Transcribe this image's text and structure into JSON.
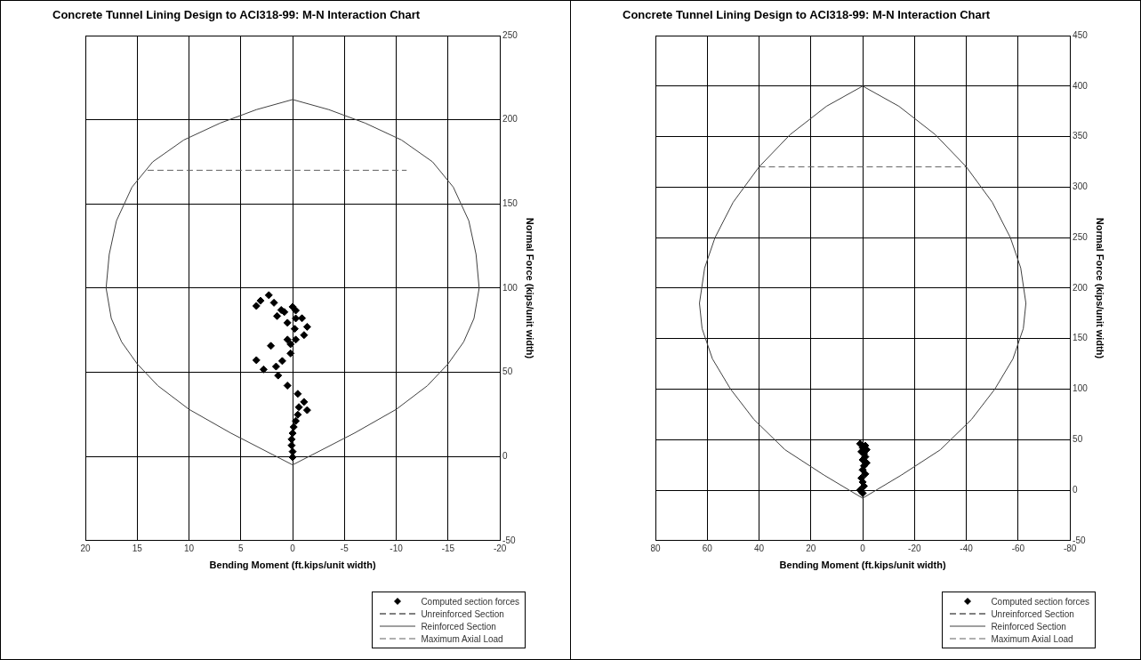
{
  "chart_data": [
    {
      "type": "scatter",
      "title": "Concrete Tunnel Lining Design to ACI318-99: M-N Interaction Chart",
      "xlabel": "Bending Moment (ft.kips/unit width)",
      "ylabel": "Normal Force (kips/unit width)",
      "xlim": [
        20,
        -20
      ],
      "xticks": [
        20,
        15,
        10,
        5,
        0,
        -5,
        -10,
        -15,
        -20
      ],
      "ylim": [
        -50,
        250
      ],
      "yticks": [
        -50,
        0,
        50,
        100,
        150,
        200,
        250
      ],
      "grid": true,
      "legend": "bottom right",
      "series": [
        {
          "name": "Computed section forces",
          "marker": "diamond",
          "color": "#000000",
          "x": [
            2.3,
            3.1,
            3.5,
            1.8,
            1.1,
            0.8,
            1.5,
            0,
            -0.3,
            -0.3,
            -0.9,
            0.5,
            -1.4,
            -0.2,
            -1.1,
            -0.3,
            0.5,
            0.2,
            2.1,
            0.2,
            3.5,
            1,
            1.6,
            2.8,
            1.4,
            0.5,
            -0.5,
            -1.1,
            -0.6,
            -1.4,
            -0.5,
            -0.3,
            -0.1,
            0,
            0.1,
            0.1,
            0,
            0
          ],
          "values": [
            95.8,
            92.5,
            89.4,
            91.3,
            87,
            85.8,
            83.4,
            88.9,
            86.7,
            82,
            82.1,
            79.4,
            77,
            75.8,
            72.1,
            69.4,
            69.4,
            66.7,
            65.7,
            61.2,
            57.2,
            56.7,
            53.4,
            51.7,
            48.1,
            42.1,
            37.2,
            32.4,
            29.3,
            27.5,
            24.8,
            21.1,
            17.5,
            13.8,
            10.2,
            6.6,
            2.9,
            -0.4
          ]
        },
        {
          "name": "Unreinforced Section",
          "type": "line",
          "line_style": "dashed",
          "color": "#000000"
        },
        {
          "name": "Reinforced Section",
          "type": "line",
          "line_style": "solid",
          "color": "#404040",
          "x": [
            18,
            17.7,
            17,
            15.5,
            13.5,
            10.5,
            7,
            3.5,
            0,
            -3.5,
            -7,
            -10.5,
            -13.5,
            -15.5,
            -17,
            -17.7,
            -18,
            null,
            -18,
            -17.5,
            -16.5,
            -15,
            -13,
            -10,
            -6,
            0,
            6,
            10,
            13,
            15,
            16.5,
            17.5,
            18
          ],
          "values": [
            100,
            120,
            140,
            160,
            175,
            188,
            198,
            206,
            212,
            206,
            198,
            188,
            175,
            160,
            140,
            120,
            100,
            null,
            100,
            82,
            68,
            55,
            42,
            28,
            14,
            -5,
            14,
            28,
            42,
            55,
            68,
            82,
            100
          ]
        },
        {
          "name": "Maximum Axial Load",
          "type": "line",
          "line_style": "dashed",
          "color": "#606060",
          "x": [
            14,
            -11
          ],
          "values": [
            170,
            170
          ]
        }
      ]
    },
    {
      "type": "scatter",
      "title": "Concrete Tunnel Lining Design to ACI318-99: M-N Interaction Chart",
      "xlabel": "Bending Moment (ft.kips/unit width)",
      "ylabel": "Normal Force (kips/unit width)",
      "xlim": [
        80,
        -80
      ],
      "xticks": [
        80,
        60,
        40,
        20,
        0,
        -20,
        -40,
        -60,
        -80
      ],
      "ylim": [
        -50,
        450
      ],
      "yticks": [
        -50,
        0,
        50,
        100,
        150,
        200,
        250,
        300,
        350,
        400,
        450
      ],
      "grid": true,
      "legend": "bottom right",
      "series": [
        {
          "name": "Computed section forces",
          "marker": "diamond",
          "color": "#000000",
          "x": [
            1,
            -1,
            0,
            -1.5,
            0.5,
            -0.5,
            -1,
            0,
            -1.5,
            -0.5,
            0,
            -1,
            0.5,
            0,
            -0.5,
            1,
            0
          ],
          "values": [
            46,
            44,
            42,
            40,
            38,
            36,
            33,
            30,
            27,
            24,
            20,
            16,
            12,
            8,
            4,
            0,
            -3
          ]
        },
        {
          "name": "Unreinforced Section",
          "type": "line",
          "line_style": "dashed",
          "color": "#000000"
        },
        {
          "name": "Reinforced Section",
          "type": "line",
          "line_style": "solid",
          "color": "#404040",
          "x": [
            63,
            61,
            57,
            50,
            40,
            28,
            14,
            0,
            -14,
            -28,
            -40,
            -50,
            -57,
            -61,
            -63,
            null,
            -63,
            -62,
            -58,
            -51,
            -42,
            -30,
            -15,
            0,
            15,
            30,
            42,
            51,
            58,
            62,
            63
          ],
          "values": [
            185,
            220,
            250,
            285,
            320,
            352,
            380,
            400,
            380,
            352,
            320,
            285,
            250,
            220,
            185,
            null,
            185,
            160,
            130,
            100,
            70,
            40,
            15,
            -8,
            15,
            40,
            70,
            100,
            130,
            160,
            185
          ]
        },
        {
          "name": "Maximum Axial Load",
          "type": "line",
          "line_style": "dashed",
          "color": "#606060",
          "x": [
            40,
            -40
          ],
          "values": [
            320,
            320
          ]
        }
      ]
    }
  ]
}
